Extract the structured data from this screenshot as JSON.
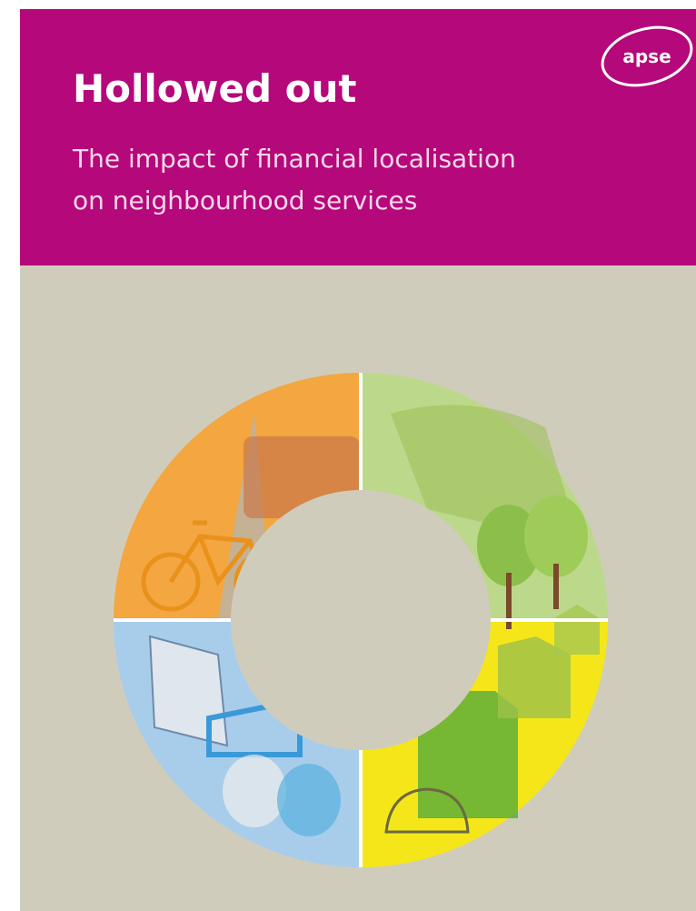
{
  "header": {
    "title": "Hollowed out",
    "subtitle": [
      "The impact of financial localisation",
      "on neighbourhood services"
    ],
    "logo": "apse"
  }
}
